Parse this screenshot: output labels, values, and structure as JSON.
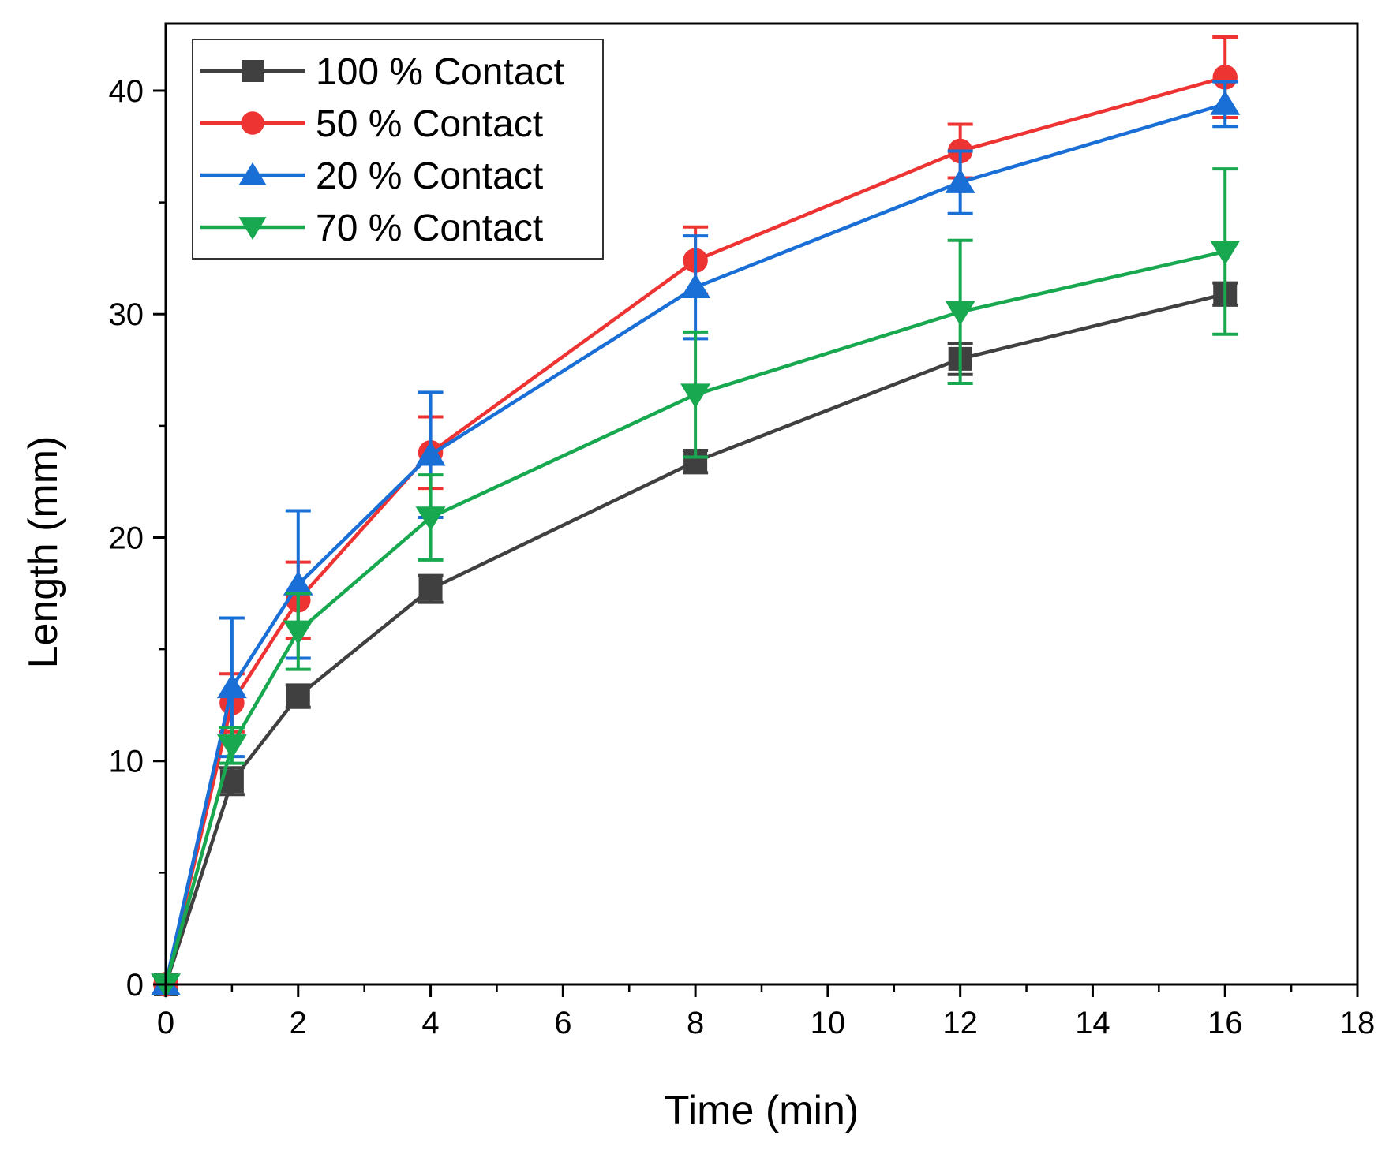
{
  "chart_data": {
    "type": "line",
    "title": "",
    "xlabel": "Time (min)",
    "ylabel": "Length (mm)",
    "xlim": [
      0,
      18
    ],
    "ylim": [
      0,
      43
    ],
    "xticks": [
      0,
      2,
      4,
      6,
      8,
      10,
      12,
      14,
      16,
      18
    ],
    "yticks": [
      0,
      10,
      20,
      30,
      40
    ],
    "grid": false,
    "legend_position": "top-left",
    "x": [
      0,
      1,
      2,
      4,
      8,
      12,
      16
    ],
    "series": [
      {
        "name": "100 % Contact",
        "color": "#404040",
        "marker": "square",
        "values": [
          0,
          9.1,
          12.9,
          17.7,
          23.4,
          28.0,
          30.9
        ],
        "errors": [
          0,
          0.6,
          0.5,
          0.6,
          0.5,
          0.7,
          0.5
        ]
      },
      {
        "name": "50   % Contact",
        "color": "#ee3333",
        "marker": "circle",
        "values": [
          0,
          12.6,
          17.2,
          23.8,
          32.4,
          37.3,
          40.6
        ],
        "errors": [
          0,
          1.3,
          1.7,
          1.6,
          1.5,
          1.2,
          1.8
        ]
      },
      {
        "name": "20   % Contact",
        "color": "#1a6fd6",
        "marker": "triangle-up",
        "values": [
          0,
          13.3,
          17.9,
          23.7,
          31.2,
          35.9,
          39.4
        ],
        "errors": [
          0,
          3.1,
          3.3,
          2.8,
          2.3,
          1.4,
          1.0
        ]
      },
      {
        "name": "70   % Contact",
        "color": "#18a84f",
        "marker": "triangle-down",
        "values": [
          0,
          10.7,
          15.8,
          20.9,
          26.4,
          30.1,
          32.8
        ],
        "errors": [
          0,
          0.8,
          1.7,
          1.9,
          2.8,
          3.2,
          3.7
        ]
      }
    ]
  }
}
